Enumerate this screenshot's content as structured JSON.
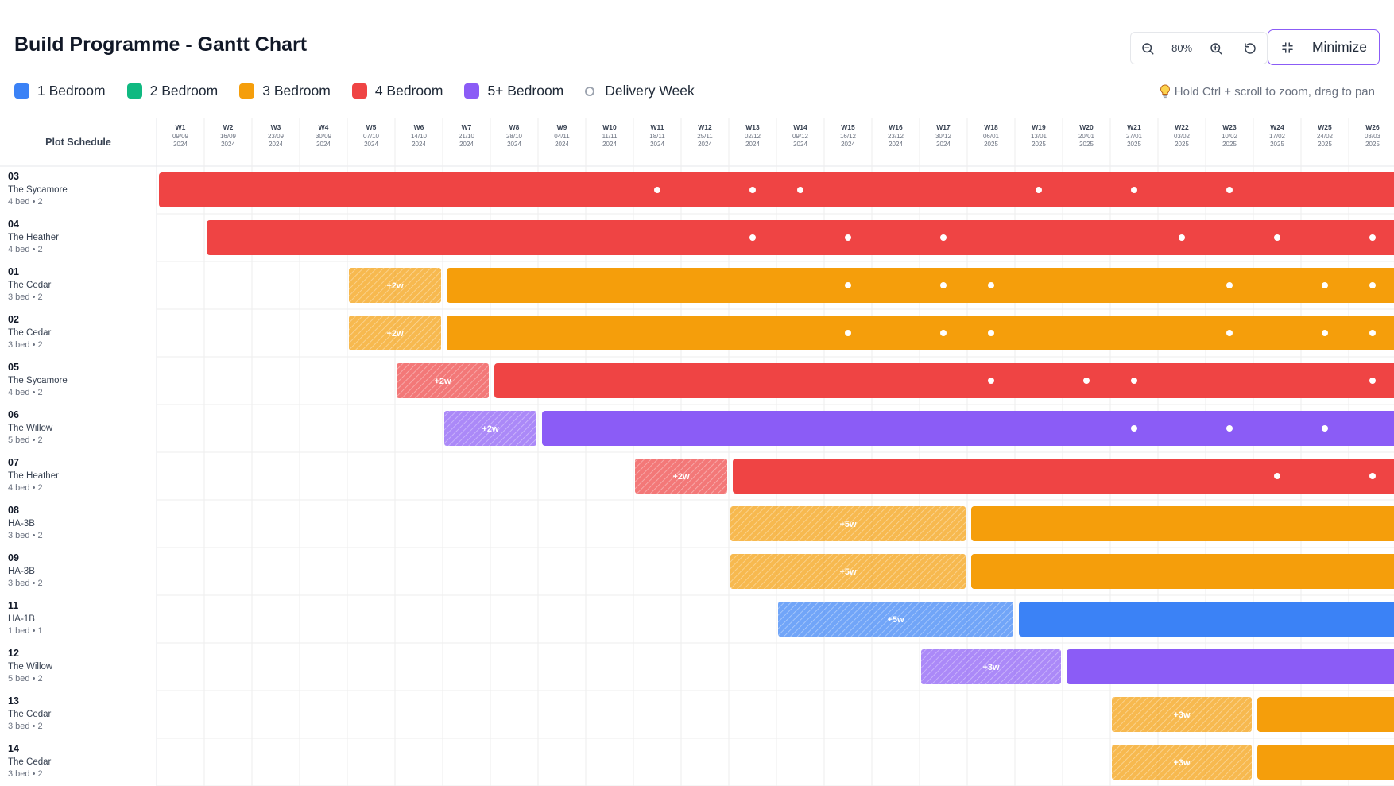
{
  "title": "Build Programme - Gantt Chart",
  "legend": {
    "items": [
      {
        "label": "1 Bedroom",
        "color": "#3b82f6"
      },
      {
        "label": "2 Bedroom",
        "color": "#10b981"
      },
      {
        "label": "3 Bedroom",
        "color": "#f59e0b"
      },
      {
        "label": "4 Bedroom",
        "color": "#ef4444"
      },
      {
        "label": "5+ Bedroom",
        "color": "#8b5cf6"
      }
    ],
    "delivery_label": "Delivery Week"
  },
  "toolbar": {
    "zoom_out_icon": "zoom-out-icon",
    "zoom_level": "80%",
    "zoom_in_icon": "zoom-in-icon",
    "reset_icon": "reset-icon",
    "minimize_label": "Minimize",
    "minimize_icon": "minimize-icon"
  },
  "hint": "Hold Ctrl + scroll to zoom, drag to pan",
  "chart_data": {
    "type": "gantt",
    "column_header": "Plot Schedule",
    "weeks": [
      {
        "label": "W1",
        "date": "09/09",
        "year": "2024"
      },
      {
        "label": "W2",
        "date": "16/09",
        "year": "2024"
      },
      {
        "label": "W3",
        "date": "23/09",
        "year": "2024"
      },
      {
        "label": "W4",
        "date": "30/09",
        "year": "2024"
      },
      {
        "label": "W5",
        "date": "07/10",
        "year": "2024"
      },
      {
        "label": "W6",
        "date": "14/10",
        "year": "2024"
      },
      {
        "label": "W7",
        "date": "21/10",
        "year": "2024"
      },
      {
        "label": "W8",
        "date": "28/10",
        "year": "2024"
      },
      {
        "label": "W9",
        "date": "04/11",
        "year": "2024"
      },
      {
        "label": "W10",
        "date": "11/11",
        "year": "2024"
      },
      {
        "label": "W11",
        "date": "18/11",
        "year": "2024"
      },
      {
        "label": "W12",
        "date": "25/11",
        "year": "2024"
      },
      {
        "label": "W13",
        "date": "02/12",
        "year": "2024"
      },
      {
        "label": "W14",
        "date": "09/12",
        "year": "2024"
      },
      {
        "label": "W15",
        "date": "16/12",
        "year": "2024"
      },
      {
        "label": "W16",
        "date": "23/12",
        "year": "2024"
      },
      {
        "label": "W17",
        "date": "30/12",
        "year": "2024"
      },
      {
        "label": "W18",
        "date": "06/01",
        "year": "2025"
      },
      {
        "label": "W19",
        "date": "13/01",
        "year": "2025"
      },
      {
        "label": "W20",
        "date": "20/01",
        "year": "2025"
      },
      {
        "label": "W21",
        "date": "27/01",
        "year": "2025"
      },
      {
        "label": "W22",
        "date": "03/02",
        "year": "2025"
      },
      {
        "label": "W23",
        "date": "10/02",
        "year": "2025"
      },
      {
        "label": "W24",
        "date": "17/02",
        "year": "2025"
      },
      {
        "label": "W25",
        "date": "24/02",
        "year": "2025"
      },
      {
        "label": "W26",
        "date": "03/03",
        "year": "2025"
      }
    ],
    "plots": [
      {
        "plot": "03",
        "house": "The Sycamore",
        "meta": "4 bed • 2",
        "category": "4 Bedroom",
        "start_week": 1,
        "delay_weeks": 0,
        "delay_label": "",
        "deliveries": [
          11.5,
          13.5,
          14.5,
          19.5,
          21.5,
          23.5
        ]
      },
      {
        "plot": "04",
        "house": "The Heather",
        "meta": "4 bed • 2",
        "category": "4 Bedroom",
        "start_week": 2,
        "delay_weeks": 0,
        "delay_label": "",
        "deliveries": [
          13.5,
          15.5,
          17.5,
          22.5,
          24.5,
          26.5
        ]
      },
      {
        "plot": "01",
        "house": "The Cedar",
        "meta": "3 bed • 2",
        "category": "3 Bedroom",
        "start_week": 5,
        "delay_weeks": 2,
        "delay_label": "+2w",
        "deliveries": [
          15.5,
          17.5,
          18.5,
          23.5,
          25.5,
          26.5
        ]
      },
      {
        "plot": "02",
        "house": "The Cedar",
        "meta": "3 bed • 2",
        "category": "3 Bedroom",
        "start_week": 5,
        "delay_weeks": 2,
        "delay_label": "+2w",
        "deliveries": [
          15.5,
          17.5,
          18.5,
          23.5,
          25.5,
          26.5
        ]
      },
      {
        "plot": "05",
        "house": "The Sycamore",
        "meta": "4 bed • 2",
        "category": "4 Bedroom",
        "start_week": 6,
        "delay_weeks": 2,
        "delay_label": "+2w",
        "deliveries": [
          18.5,
          20.5,
          21.5,
          26.5
        ]
      },
      {
        "plot": "06",
        "house": "The Willow",
        "meta": "5 bed • 2",
        "category": "5+ Bedroom",
        "start_week": 7,
        "delay_weeks": 2,
        "delay_label": "+2w",
        "deliveries": [
          21.5,
          23.5,
          25.5
        ]
      },
      {
        "plot": "07",
        "house": "The Heather",
        "meta": "4 bed • 2",
        "category": "4 Bedroom",
        "start_week": 11,
        "delay_weeks": 2,
        "delay_label": "+2w",
        "deliveries": [
          24.5,
          26.5
        ]
      },
      {
        "plot": "08",
        "house": "HA-3B",
        "meta": "3 bed • 2",
        "category": "3 Bedroom",
        "start_week": 13,
        "delay_weeks": 5,
        "delay_label": "+5w",
        "deliveries": []
      },
      {
        "plot": "09",
        "house": "HA-3B",
        "meta": "3 bed • 2",
        "category": "3 Bedroom",
        "start_week": 13,
        "delay_weeks": 5,
        "delay_label": "+5w",
        "deliveries": []
      },
      {
        "plot": "11",
        "house": "HA-1B",
        "meta": "1 bed • 1",
        "category": "1 Bedroom",
        "start_week": 14,
        "delay_weeks": 5,
        "delay_label": "+5w",
        "deliveries": []
      },
      {
        "plot": "12",
        "house": "The Willow",
        "meta": "5 bed • 2",
        "category": "5+ Bedroom",
        "start_week": 17,
        "delay_weeks": 3,
        "delay_label": "+3w",
        "deliveries": []
      },
      {
        "plot": "13",
        "house": "The Cedar",
        "meta": "3 bed • 2",
        "category": "3 Bedroom",
        "start_week": 21,
        "delay_weeks": 3,
        "delay_label": "+3w",
        "deliveries": []
      },
      {
        "plot": "14",
        "house": "The Cedar",
        "meta": "3 bed • 2",
        "category": "3 Bedroom",
        "start_week": 21,
        "delay_weeks": 3,
        "delay_label": "+3w",
        "deliveries": []
      }
    ]
  }
}
